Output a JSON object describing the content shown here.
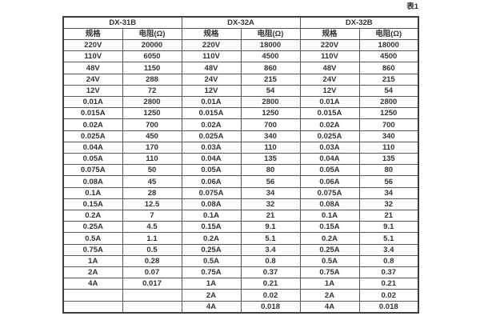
{
  "page": {
    "caption": "表1"
  },
  "table": {
    "groups": [
      {
        "name": "DX-31B"
      },
      {
        "name": "DX-32A"
      },
      {
        "name": "DX-32B"
      }
    ],
    "subheaders": {
      "spec": "规格",
      "resistance": "电阻(Ω)"
    },
    "rows": [
      [
        "220V",
        "20000",
        "220V",
        "18000",
        "220V",
        "18000"
      ],
      [
        "110V",
        "6050",
        "110V",
        "4500",
        "110V",
        "4500"
      ],
      [
        "48V",
        "1150",
        "48V",
        "860",
        "48V",
        "860"
      ],
      [
        "24V",
        "288",
        "24V",
        "215",
        "24V",
        "215"
      ],
      [
        "12V",
        "72",
        "12V",
        "54",
        "12V",
        "54"
      ],
      [
        "0.01A",
        "2800",
        "0.01A",
        "2800",
        "0.01A",
        "2800"
      ],
      [
        "0.015A",
        "1250",
        "0.015A",
        "1250",
        "0.015A",
        "1250"
      ],
      [
        "0.02A",
        "700",
        "0.02A",
        "700",
        "0.02A",
        "700"
      ],
      [
        "0.025A",
        "450",
        "0.025A",
        "340",
        "0.025A",
        "340"
      ],
      [
        "0.04A",
        "170",
        "0.03A",
        "110",
        "0.03A",
        "110"
      ],
      [
        "0.05A",
        "110",
        "0.04A",
        "135",
        "0.04A",
        "135"
      ],
      [
        "0.075A",
        "50",
        "0.05A",
        "80",
        "0.05A",
        "80"
      ],
      [
        "0.08A",
        "45",
        "0.06A",
        "56",
        "0.06A",
        "56"
      ],
      [
        "0.1A",
        "28",
        "0.075A",
        "34",
        "0.075A",
        "34"
      ],
      [
        "0.15A",
        "12.5",
        "0.08A",
        "32",
        "0.08A",
        "32"
      ],
      [
        "0.2A",
        "7",
        "0.1A",
        "21",
        "0.1A",
        "21"
      ],
      [
        "0.25A",
        "4.5",
        "0.15A",
        "9.1",
        "0.15A",
        "9.1"
      ],
      [
        "0.5A",
        "1.1",
        "0.2A",
        "5.1",
        "0.2A",
        "5.1"
      ],
      [
        "0.75A",
        "0.5",
        "0.25A",
        "3.4",
        "0.25A",
        "3.4"
      ],
      [
        "1A",
        "0.28",
        "0.5A",
        "0.8",
        "0.5A",
        "0.8"
      ],
      [
        "2A",
        "0.07",
        "0.75A",
        "0.37",
        "0.75A",
        "0.37"
      ],
      [
        "4A",
        "0.017",
        "1A",
        "0.21",
        "1A",
        "0.21"
      ],
      [
        "",
        "",
        "2A",
        "0.02",
        "2A",
        "0.02"
      ],
      [
        "",
        "",
        "4A",
        "0.018",
        "4A",
        "0.018"
      ]
    ],
    "colors": {
      "border": "#595959",
      "outer_border": "#3f3f3f",
      "text": "#333333",
      "background": "#ffffff"
    }
  }
}
